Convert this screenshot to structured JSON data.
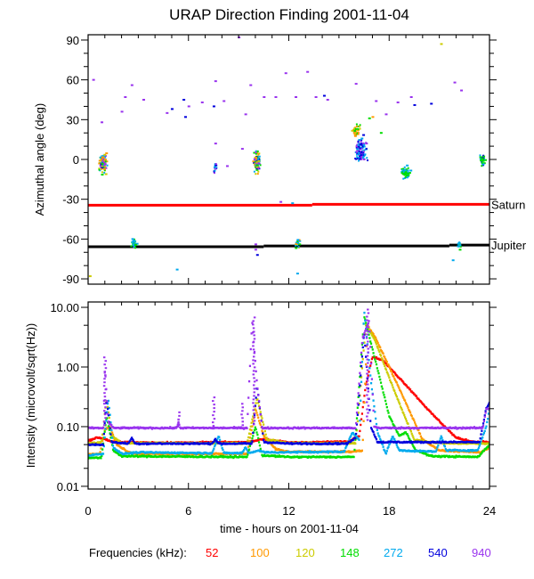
{
  "chart_data": [
    {
      "type": "scatter",
      "title": "URAP Direction Finding  2001-11-04",
      "xlabel": "",
      "ylabel": "Azimuthal angle (deg)",
      "xlim": [
        0,
        24
      ],
      "ylim": [
        -94,
        94
      ],
      "xticks": [
        0,
        6,
        12,
        18,
        24
      ],
      "yticks": [
        90,
        60,
        30,
        0,
        -30,
        -60,
        -90
      ],
      "ytick_labels": [
        "90",
        "60",
        "30",
        "0",
        "-30",
        "-60",
        "-90"
      ],
      "grid": false,
      "reference_lines": [
        {
          "name": "Saturn",
          "color": "#ff0000",
          "segments": [
            [
              0,
              13.4,
              -34.5
            ],
            [
              13.4,
              24,
              -33.8
            ]
          ]
        },
        {
          "name": "Jupiter",
          "color": "#000000",
          "segments": [
            [
              0,
              10.5,
              -65.8
            ],
            [
              10.5,
              21.6,
              -65.2
            ],
            [
              21.6,
              24,
              -64.5
            ]
          ]
        }
      ],
      "clusters": [
        {
          "hour": 0.9,
          "spread_h": 0.35,
          "angle": -3,
          "spread_deg": 13,
          "frequencies": [
            "540",
            "940",
            "272",
            "148",
            "120",
            "100"
          ],
          "count": 90
        },
        {
          "hour": 2.75,
          "spread_h": 0.25,
          "angle": -64,
          "spread_deg": 7,
          "frequencies": [
            "148",
            "272"
          ],
          "count": 30
        },
        {
          "hour": 7.6,
          "spread_h": 0.15,
          "angle": -6,
          "spread_deg": 9,
          "frequencies": [
            "540",
            "272",
            "940"
          ],
          "count": 14
        },
        {
          "hour": 10.1,
          "spread_h": 0.3,
          "angle": -2,
          "spread_deg": 14,
          "frequencies": [
            "540",
            "272",
            "148",
            "120",
            "940",
            "100"
          ],
          "count": 90
        },
        {
          "hour": 12.5,
          "spread_h": 0.2,
          "angle": -64,
          "spread_deg": 7,
          "frequencies": [
            "148",
            "272",
            "100"
          ],
          "count": 30
        },
        {
          "hour": 16.0,
          "spread_h": 0.35,
          "angle": 22,
          "spread_deg": 10,
          "frequencies": [
            "120",
            "148",
            "100"
          ],
          "count": 40
        },
        {
          "hour": 16.3,
          "spread_h": 0.55,
          "angle": 7,
          "spread_deg": 14,
          "frequencies": [
            "272",
            "540",
            "940"
          ],
          "count": 110
        },
        {
          "hour": 19.0,
          "spread_h": 0.4,
          "angle": -10,
          "spread_deg": 7,
          "frequencies": [
            "272",
            "148"
          ],
          "count": 55
        },
        {
          "hour": 23.6,
          "spread_h": 0.3,
          "angle": -1,
          "spread_deg": 8,
          "frequencies": [
            "272",
            "540",
            "148"
          ],
          "count": 40
        },
        {
          "hour": 22.2,
          "spread_h": 0.2,
          "angle": -65,
          "spread_deg": 7,
          "frequencies": [
            "272",
            "148"
          ],
          "count": 12
        }
      ],
      "sparse_points": [
        [
          0.3,
          60,
          "940"
        ],
        [
          0.8,
          28,
          "940"
        ],
        [
          2.0,
          36,
          "940"
        ],
        [
          2.2,
          47,
          "940"
        ],
        [
          2.6,
          56,
          "940"
        ],
        [
          3.3,
          45,
          "940"
        ],
        [
          4.7,
          35,
          "940"
        ],
        [
          5.0,
          38,
          "540"
        ],
        [
          5.7,
          45,
          "540"
        ],
        [
          5.8,
          32,
          "540"
        ],
        [
          6.0,
          40,
          "940"
        ],
        [
          6.8,
          43,
          "940"
        ],
        [
          7.5,
          40,
          "540"
        ],
        [
          7.6,
          12,
          "940"
        ],
        [
          7.6,
          59,
          "940"
        ],
        [
          8.1,
          44,
          "940"
        ],
        [
          9.0,
          92,
          "940"
        ],
        [
          9.4,
          34,
          "940"
        ],
        [
          9.7,
          56,
          "940"
        ],
        [
          10.5,
          47,
          "940"
        ],
        [
          11.2,
          47,
          "940"
        ],
        [
          11.8,
          65,
          "940"
        ],
        [
          12.4,
          47,
          "940"
        ],
        [
          13.6,
          47,
          "940"
        ],
        [
          13.1,
          66,
          "940"
        ],
        [
          14.1,
          48,
          "540"
        ],
        [
          14.3,
          45,
          "940"
        ],
        [
          16.0,
          57,
          "940"
        ],
        [
          17.2,
          44,
          "940"
        ],
        [
          17.8,
          34,
          "940"
        ],
        [
          18.5,
          43,
          "940"
        ],
        [
          19.3,
          47,
          "940"
        ],
        [
          19.5,
          41,
          "540"
        ],
        [
          20.5,
          42,
          "540"
        ],
        [
          21.1,
          87,
          "120"
        ],
        [
          21.9,
          58,
          "940"
        ],
        [
          22.3,
          52,
          "940"
        ],
        [
          9.2,
          8,
          "940"
        ],
        [
          8.3,
          -5,
          "940"
        ],
        [
          11.5,
          -32,
          "940"
        ],
        [
          12.2,
          -33,
          "272"
        ],
        [
          10.0,
          -64,
          "940"
        ],
        [
          10.0,
          -68,
          "940"
        ],
        [
          10.1,
          -72,
          "540"
        ],
        [
          5.3,
          -83,
          "272"
        ],
        [
          12.5,
          -86,
          "272"
        ],
        [
          21.8,
          -76,
          "272"
        ],
        [
          0.1,
          -88,
          "120"
        ],
        [
          16.8,
          31,
          "148"
        ],
        [
          17.0,
          32,
          "100"
        ],
        [
          17.5,
          20,
          "148"
        ]
      ]
    },
    {
      "type": "line",
      "xlabel": "time - hours on 2001-11-04",
      "ylabel": "Intensity (microvolt/sqrt(Hz))",
      "xlim": [
        0,
        24
      ],
      "yscale": "log",
      "ylim": [
        0.009,
        12.3
      ],
      "xticks": [
        0,
        6,
        12,
        18,
        24
      ],
      "xtick_labels": [
        "0",
        "6",
        "12",
        "18",
        "24"
      ],
      "yticks": [
        10,
        1,
        0.1,
        0.01
      ],
      "ytick_labels": [
        "10.00",
        "1.00",
        "0.10",
        "0.01"
      ],
      "grid": false,
      "series": [
        {
          "name": "52",
          "color": "#ff0000",
          "points": [
            [
              0,
              0.058
            ],
            [
              0.6,
              0.066
            ],
            [
              1.0,
              0.062
            ],
            [
              1.4,
              0.056
            ],
            [
              3,
              0.054
            ],
            [
              6,
              0.054
            ],
            [
              9.5,
              0.055
            ],
            [
              10.5,
              0.062
            ],
            [
              11.2,
              0.058
            ],
            [
              12,
              0.054
            ],
            [
              15.5,
              0.056
            ],
            [
              16.2,
              0.07
            ],
            [
              16.6,
              0.5
            ],
            [
              17.0,
              1.5
            ],
            [
              17.6,
              1.3
            ],
            [
              19,
              0.5
            ],
            [
              20.5,
              0.17
            ],
            [
              22,
              0.065
            ],
            [
              23,
              0.056
            ],
            [
              24,
              0.055
            ]
          ]
        },
        {
          "name": "100",
          "color": "#ff9900",
          "points": [
            [
              0,
              0.034
            ],
            [
              0.7,
              0.035
            ],
            [
              1.0,
              0.09
            ],
            [
              1.3,
              0.1
            ],
            [
              1.7,
              0.05
            ],
            [
              2.4,
              0.037
            ],
            [
              3,
              0.035
            ],
            [
              9.5,
              0.035
            ],
            [
              10.0,
              0.2
            ],
            [
              10.5,
              0.07
            ],
            [
              11.2,
              0.042
            ],
            [
              12,
              0.038
            ],
            [
              15.8,
              0.038
            ],
            [
              16.4,
              0.04
            ],
            [
              16.7,
              5.0
            ],
            [
              17.2,
              3.0
            ],
            [
              18.5,
              0.5
            ],
            [
              20,
              0.06
            ],
            [
              21,
              0.04
            ],
            [
              23.5,
              0.037
            ],
            [
              24,
              0.045
            ]
          ]
        },
        {
          "name": "120",
          "color": "#cccc00",
          "points": [
            [
              0,
              0.052
            ],
            [
              0.8,
              0.055
            ],
            [
              1.1,
              0.3
            ],
            [
              1.4,
              0.07
            ],
            [
              2,
              0.053
            ],
            [
              9.5,
              0.053
            ],
            [
              10.1,
              0.3
            ],
            [
              10.7,
              0.06
            ],
            [
              12,
              0.053
            ],
            [
              16.0,
              0.053
            ],
            [
              16.6,
              5.0
            ],
            [
              17.1,
              3.0
            ],
            [
              18.3,
              0.4
            ],
            [
              19.5,
              0.06
            ],
            [
              21,
              0.053
            ],
            [
              24,
              0.052
            ]
          ]
        },
        {
          "name": "148",
          "color": "#00dd00",
          "points": [
            [
              0,
              0.03
            ],
            [
              0.8,
              0.03
            ],
            [
              1.1,
              0.15
            ],
            [
              1.5,
              0.04
            ],
            [
              2.0,
              0.032
            ],
            [
              9.5,
              0.031
            ],
            [
              10.0,
              0.1
            ],
            [
              10.4,
              0.033
            ],
            [
              12,
              0.031
            ],
            [
              15.9,
              0.031
            ],
            [
              16.5,
              7.0
            ],
            [
              17.0,
              2.0
            ],
            [
              18.0,
              0.15
            ],
            [
              18.6,
              0.07
            ],
            [
              19.0,
              0.08
            ],
            [
              19.6,
              0.04
            ],
            [
              20.5,
              0.032
            ],
            [
              23.3,
              0.031
            ],
            [
              24,
              0.05
            ]
          ]
        },
        {
          "name": "272",
          "color": "#00aaee",
          "points": [
            [
              0,
              0.033
            ],
            [
              0.9,
              0.035
            ],
            [
              1.2,
              0.3
            ],
            [
              1.5,
              0.045
            ],
            [
              2.0,
              0.035
            ],
            [
              3,
              0.037
            ],
            [
              7.4,
              0.036
            ],
            [
              7.8,
              0.07
            ],
            [
              8.1,
              0.036
            ],
            [
              9.2,
              0.036
            ],
            [
              9.4,
              0.045
            ],
            [
              9.6,
              0.036
            ],
            [
              10.2,
              0.04
            ],
            [
              10.6,
              0.037
            ],
            [
              15.3,
              0.038
            ],
            [
              15.8,
              0.08
            ],
            [
              16.2,
              0.06
            ],
            [
              16.5,
              9.0
            ],
            [
              16.9,
              0.6
            ],
            [
              17.3,
              0.08
            ],
            [
              17.8,
              0.035
            ],
            [
              18.2,
              0.07
            ],
            [
              18.6,
              0.04
            ],
            [
              20.8,
              0.038
            ],
            [
              21.1,
              0.07
            ],
            [
              21.4,
              0.04
            ],
            [
              23.3,
              0.04
            ],
            [
              23.8,
              0.1
            ],
            [
              24,
              0.2
            ]
          ]
        },
        {
          "name": "540",
          "color": "#0000dd",
          "points": [
            [
              0,
              0.05
            ],
            [
              0.9,
              0.05
            ],
            [
              1.1,
              0.3
            ],
            [
              1.4,
              0.055
            ],
            [
              2.4,
              0.052
            ],
            [
              2.6,
              0.065
            ],
            [
              2.8,
              0.052
            ],
            [
              7.4,
              0.052
            ],
            [
              7.6,
              0.062
            ],
            [
              7.8,
              0.052
            ],
            [
              9.8,
              0.052
            ],
            [
              10.1,
              0.5
            ],
            [
              10.5,
              0.055
            ],
            [
              12,
              0.052
            ],
            [
              15.5,
              0.052
            ],
            [
              16.0,
              0.065
            ],
            [
              16.5,
              4.0
            ],
            [
              16.9,
              0.1
            ],
            [
              17.3,
              0.055
            ],
            [
              23.4,
              0.055
            ],
            [
              23.8,
              0.2
            ],
            [
              24,
              0.25
            ]
          ]
        },
        {
          "name": "940",
          "color": "#9933ee",
          "points": [
            [
              0,
              0.095
            ],
            [
              0.9,
              0.095
            ],
            [
              1.0,
              1.0
            ],
            [
              1.2,
              0.12
            ],
            [
              1.5,
              0.095
            ],
            [
              5.3,
              0.095
            ],
            [
              5.4,
              0.12
            ],
            [
              5.5,
              0.095
            ],
            [
              9.5,
              0.095
            ],
            [
              9.8,
              6.0
            ],
            [
              10.1,
              0.5
            ],
            [
              10.4,
              0.095
            ],
            [
              16.0,
              0.095
            ],
            [
              16.4,
              3.0
            ],
            [
              16.8,
              6.0
            ],
            [
              17.1,
              0.1
            ],
            [
              17.4,
              0.095
            ],
            [
              23.6,
              0.095
            ],
            [
              23.8,
              0.2
            ],
            [
              24,
              0.2
            ]
          ]
        }
      ],
      "spikes": [
        {
          "hour": 1.0,
          "from": 0.1,
          "to": 1.5,
          "series": "940"
        },
        {
          "hour": 5.4,
          "from": 0.1,
          "to": 0.18,
          "series": "940"
        },
        {
          "hour": 7.5,
          "from": 0.1,
          "to": 0.32,
          "series": "940"
        },
        {
          "hour": 9.9,
          "from": 0.1,
          "to": 7.0,
          "series": "940"
        },
        {
          "hour": 9.2,
          "from": 0.1,
          "to": 0.25,
          "series": "940"
        },
        {
          "hour": 16.7,
          "from": 0.12,
          "to": 9.5,
          "series": "940"
        },
        {
          "hour": 8.8,
          "from": 0.12,
          "to": 0.12,
          "series": "940"
        }
      ]
    }
  ],
  "legend": {
    "label": "Frequencies (kHz):",
    "items": [
      {
        "label": "52",
        "color": "#ff0000"
      },
      {
        "label": "100",
        "color": "#ff9900"
      },
      {
        "label": "120",
        "color": "#cccc00"
      },
      {
        "label": "148",
        "color": "#00dd00"
      },
      {
        "label": "272",
        "color": "#00aaee"
      },
      {
        "label": "540",
        "color": "#0000dd"
      },
      {
        "label": "940",
        "color": "#9933ee"
      }
    ]
  }
}
